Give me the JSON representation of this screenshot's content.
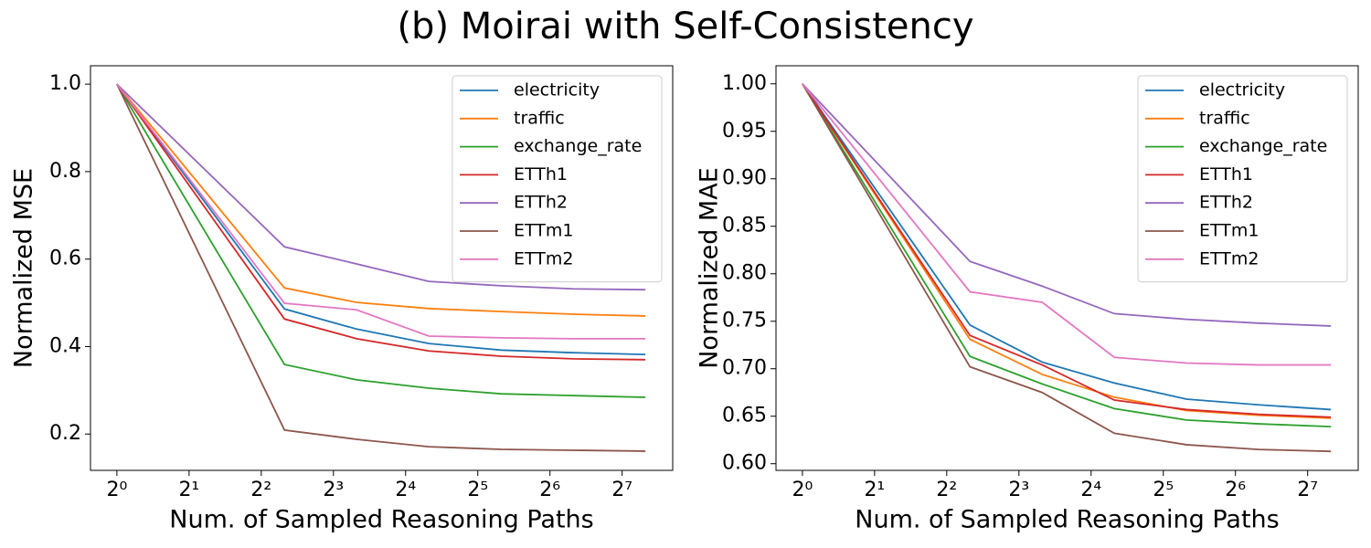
{
  "title": "(b) Moirai with Self-Consistency",
  "chart_data": [
    {
      "type": "line",
      "xlabel": "Num. of Sampled Reasoning Paths",
      "ylabel": "Normalized MSE",
      "xscale": "log",
      "legend": "upper right",
      "x": [
        1,
        5,
        10,
        20,
        40,
        80,
        160
      ],
      "xlim": [
        0.776,
        208
      ],
      "xticks": [
        {
          "value": 1,
          "label": "2⁰"
        },
        {
          "value": 2,
          "label": "2¹"
        },
        {
          "value": 4,
          "label": "2²"
        },
        {
          "value": 8,
          "label": "2³"
        },
        {
          "value": 16,
          "label": "2⁴"
        },
        {
          "value": 32,
          "label": "2⁵"
        },
        {
          "value": 64,
          "label": "2⁶"
        },
        {
          "value": 128,
          "label": "2⁷"
        }
      ],
      "ylim": [
        0.117,
        1.042
      ],
      "yticks": [
        0.2,
        0.4,
        0.6,
        0.8,
        {
          "value": 1,
          "label": "1.0"
        }
      ],
      "series": [
        {
          "name": "electricity",
          "color": "#1f77b4",
          "values": [
            1,
            0.486,
            0.44,
            0.407,
            0.392,
            0.386,
            0.382
          ]
        },
        {
          "name": "traffic",
          "color": "#ff7f0e",
          "values": [
            1,
            0.534,
            0.501,
            0.487,
            0.48,
            0.474,
            0.47
          ]
        },
        {
          "name": "exchange_rate",
          "color": "#2ca02c",
          "values": [
            1,
            0.359,
            0.324,
            0.305,
            0.292,
            0.288,
            0.284
          ]
        },
        {
          "name": "ETTh1",
          "color": "#d62728",
          "values": [
            1,
            0.463,
            0.418,
            0.39,
            0.378,
            0.372,
            0.37
          ]
        },
        {
          "name": "ETTh2",
          "color": "#9467bd",
          "values": [
            1,
            0.628,
            0.589,
            0.549,
            0.539,
            0.532,
            0.53
          ]
        },
        {
          "name": "ETTm1",
          "color": "#8c564b",
          "values": [
            1,
            0.209,
            0.188,
            0.171,
            0.165,
            0.163,
            0.161
          ]
        },
        {
          "name": "ETTm2",
          "color": "#e377c2",
          "values": [
            1,
            0.499,
            0.484,
            0.424,
            0.42,
            0.418,
            0.418
          ]
        }
      ]
    },
    {
      "type": "line",
      "xlabel": "Num. of Sampled Reasoning Paths",
      "ylabel": "Normalized MAE",
      "xscale": "log",
      "legend": "upper right",
      "x": [
        1,
        5,
        10,
        20,
        40,
        80,
        160
      ],
      "xlim": [
        0.776,
        208
      ],
      "xticks": [
        {
          "value": 1,
          "label": "2⁰"
        },
        {
          "value": 2,
          "label": "2¹"
        },
        {
          "value": 4,
          "label": "2²"
        },
        {
          "value": 8,
          "label": "2³"
        },
        {
          "value": 16,
          "label": "2⁴"
        },
        {
          "value": 32,
          "label": "2⁵"
        },
        {
          "value": 64,
          "label": "2⁶"
        },
        {
          "value": 128,
          "label": "2⁷"
        }
      ],
      "ylim": [
        0.593,
        1.019
      ],
      "yticks": [
        {
          "value": 0.6,
          "label": "0.60"
        },
        {
          "value": 0.65,
          "label": "0.65"
        },
        {
          "value": 0.7,
          "label": "0.70"
        },
        {
          "value": 0.75,
          "label": "0.75"
        },
        {
          "value": 0.8,
          "label": "0.80"
        },
        {
          "value": 0.85,
          "label": "0.85"
        },
        {
          "value": 0.9,
          "label": "0.90"
        },
        {
          "value": 0.95,
          "label": "0.95"
        },
        {
          "value": 1,
          "label": "1.00"
        }
      ],
      "series": [
        {
          "name": "electricity",
          "color": "#1f77b4",
          "values": [
            1,
            0.746,
            0.707,
            0.685,
            0.668,
            0.662,
            0.657
          ]
        },
        {
          "name": "traffic",
          "color": "#ff7f0e",
          "values": [
            1,
            0.731,
            0.694,
            0.67,
            0.656,
            0.651,
            0.648
          ]
        },
        {
          "name": "exchange_rate",
          "color": "#2ca02c",
          "values": [
            1,
            0.713,
            0.684,
            0.658,
            0.646,
            0.642,
            0.639
          ]
        },
        {
          "name": "ETTh1",
          "color": "#d62728",
          "values": [
            1,
            0.735,
            0.704,
            0.667,
            0.657,
            0.652,
            0.649
          ]
        },
        {
          "name": "ETTh2",
          "color": "#9467bd",
          "values": [
            1,
            0.813,
            0.787,
            0.758,
            0.752,
            0.748,
            0.745
          ]
        },
        {
          "name": "ETTm1",
          "color": "#8c564b",
          "values": [
            1,
            0.702,
            0.675,
            0.632,
            0.62,
            0.615,
            0.613
          ]
        },
        {
          "name": "ETTm2",
          "color": "#e377c2",
          "values": [
            1,
            0.781,
            0.77,
            0.712,
            0.706,
            0.704,
            0.704
          ]
        }
      ]
    }
  ]
}
